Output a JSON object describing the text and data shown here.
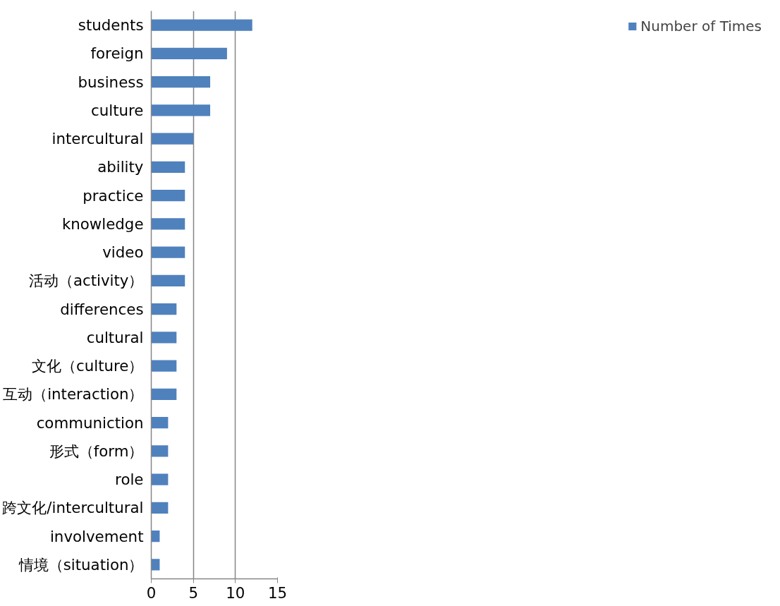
{
  "chart_data": {
    "type": "bar",
    "orientation": "horizontal",
    "categories": [
      "students",
      "foreign",
      "business",
      "culture",
      "intercultural",
      "ability",
      "practice",
      "knowledge",
      "video",
      "活动（activity）",
      "differences",
      "cultural",
      "文化（culture）",
      "互动（interaction）",
      "communiction",
      "形式（form）",
      "role",
      "跨文化/intercultural",
      "involvement",
      "情境（situation）"
    ],
    "series": [
      {
        "name": "Number of Times",
        "color": "#4f81bd",
        "values": [
          12,
          9,
          7,
          7,
          5,
          4,
          4,
          4,
          4,
          4,
          3,
          3,
          3,
          3,
          2,
          2,
          2,
          2,
          1,
          1
        ]
      }
    ],
    "xlim": [
      0,
      15
    ],
    "xticks": [
      0,
      5,
      10,
      15
    ],
    "grid": "x",
    "legend": "right"
  }
}
